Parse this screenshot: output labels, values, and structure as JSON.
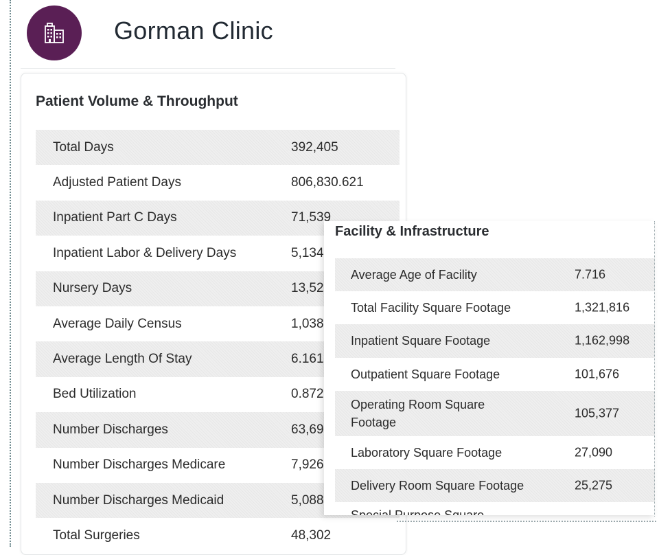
{
  "header": {
    "clinic_name": "Gorman Clinic",
    "avatar_icon": "building-icon",
    "avatar_color": "#5a1f55"
  },
  "patient_volume": {
    "title": "Patient Volume & Throughput",
    "rows": [
      {
        "label": "Total Days",
        "value": "392,405"
      },
      {
        "label": "Adjusted Patient Days",
        "value": "806,830.621"
      },
      {
        "label": "Inpatient Part C Days",
        "value": "71,539"
      },
      {
        "label": "Inpatient Labor & Delivery Days",
        "value": "5,134"
      },
      {
        "label": "Nursery Days",
        "value": "13,52"
      },
      {
        "label": "Average Daily Census",
        "value": "1,038"
      },
      {
        "label": "Average Length Of Stay",
        "value": "6.161"
      },
      {
        "label": "Bed Utilization",
        "value": "0.872"
      },
      {
        "label": "Number Discharges",
        "value": "63,69"
      },
      {
        "label": "Number Discharges Medicare",
        "value": "7,926"
      },
      {
        "label": "Number Discharges Medicaid",
        "value": "5,088"
      },
      {
        "label": "Total Surgeries",
        "value": "48,302"
      }
    ]
  },
  "facility": {
    "title": "Facility & Infrastructure",
    "rows": [
      {
        "label": "Average Age of Facility",
        "value": "7.716"
      },
      {
        "label": "Total Facility Square Footage",
        "value": "1,321,816"
      },
      {
        "label": "Inpatient Square Footage",
        "value": "1,162,998"
      },
      {
        "label": "Outpatient Square Footage",
        "value": "101,676"
      },
      {
        "label": "Operating Room Square Footage",
        "value": "105,377"
      },
      {
        "label": "Laboratory Square Footage",
        "value": "27,090"
      },
      {
        "label": "Delivery Room Square Footage",
        "value": "25,275"
      },
      {
        "label": "Special Purpose Square",
        "value": ""
      }
    ]
  }
}
